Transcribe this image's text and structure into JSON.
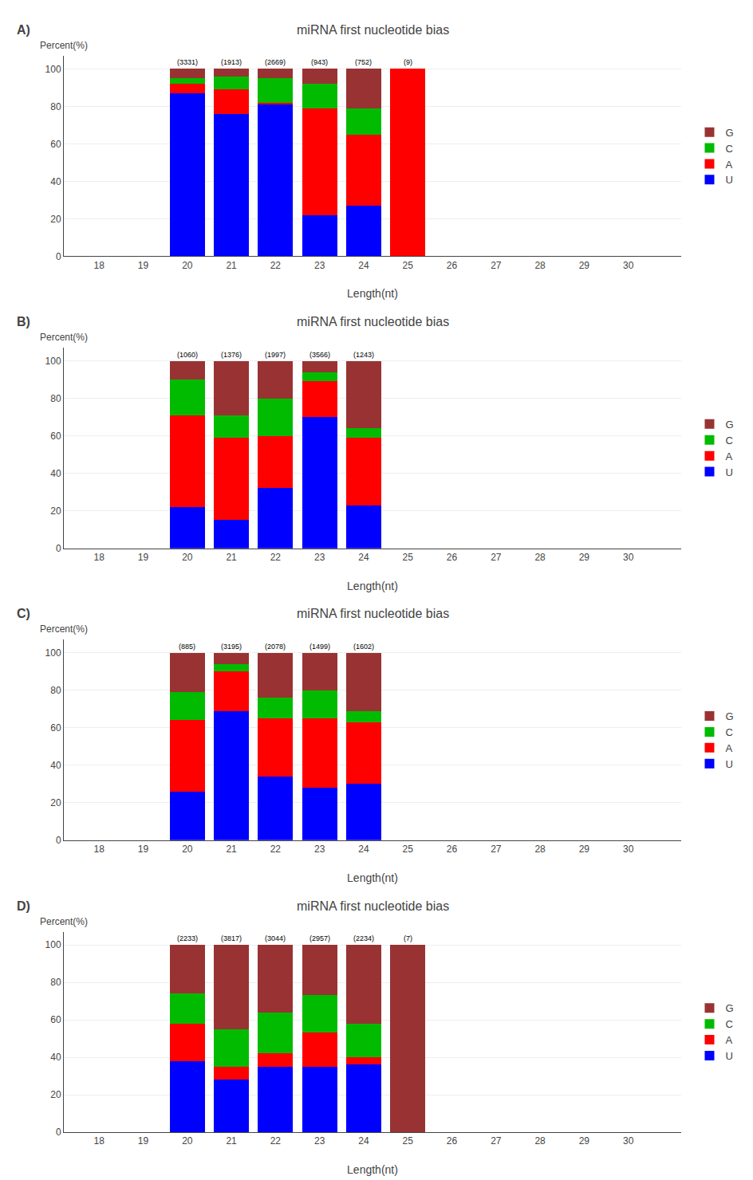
{
  "chart_data": [
    {
      "type": "bar",
      "title": "miRNA first nucleotide bias",
      "subtitle": "A)",
      "xlabel": "Length(nt)",
      "ylabel": "Percent(%)",
      "x": [
        20,
        21,
        22,
        23,
        24,
        25
      ],
      "series": [
        {
          "name": "U",
          "color": "#0000ff",
          "values": [
            87,
            76,
            81,
            22,
            27,
            0
          ]
        },
        {
          "name": "A",
          "color": "#ff0000",
          "values": [
            5,
            13,
            1,
            57,
            38,
            100
          ]
        },
        {
          "name": "C",
          "color": "#00bb00",
          "values": [
            3,
            7,
            13,
            13,
            14,
            0
          ]
        },
        {
          "name": "G",
          "color": "#993333",
          "values": [
            5,
            4,
            5,
            8,
            21,
            0
          ]
        }
      ],
      "annotations": [
        {
          "x": 20,
          "text": "(3331)"
        },
        {
          "x": 21,
          "text": "(1913)"
        },
        {
          "x": 22,
          "text": "(2669)"
        },
        {
          "x": 23,
          "text": "(943)"
        },
        {
          "x": 24,
          "text": "(752)"
        },
        {
          "x": 25,
          "text": "(9)"
        }
      ],
      "stacked": true,
      "xlim": [
        17.2,
        31.2
      ],
      "xticks": [
        18,
        19,
        20,
        21,
        22,
        23,
        24,
        25,
        26,
        27,
        28,
        29,
        30
      ],
      "ylim": [
        0,
        107
      ],
      "yticks": [
        0,
        20,
        40,
        60,
        80,
        100
      ],
      "grid": true,
      "legend": "right"
    },
    {
      "type": "bar",
      "title": "miRNA first nucleotide bias",
      "subtitle": "B)",
      "xlabel": "Length(nt)",
      "ylabel": "Percent(%)",
      "x": [
        20,
        21,
        22,
        23,
        24
      ],
      "series": [
        {
          "name": "U",
          "color": "#0000ff",
          "values": [
            22,
            15,
            32,
            70,
            23
          ]
        },
        {
          "name": "A",
          "color": "#ff0000",
          "values": [
            49,
            44,
            28,
            19,
            36
          ]
        },
        {
          "name": "C",
          "color": "#00bb00",
          "values": [
            19,
            12,
            20,
            5,
            5
          ]
        },
        {
          "name": "G",
          "color": "#993333",
          "values": [
            10,
            29,
            20,
            6,
            36
          ]
        }
      ],
      "annotations": [
        {
          "x": 20,
          "text": "(1060)"
        },
        {
          "x": 21,
          "text": "(1376)"
        },
        {
          "x": 22,
          "text": "(1997)"
        },
        {
          "x": 23,
          "text": "(3566)"
        },
        {
          "x": 24,
          "text": "(1243)"
        }
      ],
      "stacked": true,
      "xlim": [
        17.2,
        31.2
      ],
      "xticks": [
        18,
        19,
        20,
        21,
        22,
        23,
        24,
        25,
        26,
        27,
        28,
        29,
        30
      ],
      "ylim": [
        0,
        107
      ],
      "yticks": [
        0,
        20,
        40,
        60,
        80,
        100
      ],
      "grid": true,
      "legend": "right"
    },
    {
      "type": "bar",
      "title": "miRNA first nucleotide bias",
      "subtitle": "C)",
      "xlabel": "Length(nt)",
      "ylabel": "Percent(%)",
      "x": [
        20,
        21,
        22,
        23,
        24
      ],
      "series": [
        {
          "name": "U",
          "color": "#0000ff",
          "values": [
            26,
            69,
            34,
            28,
            30
          ]
        },
        {
          "name": "A",
          "color": "#ff0000",
          "values": [
            38,
            21,
            31,
            37,
            33
          ]
        },
        {
          "name": "C",
          "color": "#00bb00",
          "values": [
            15,
            4,
            11,
            15,
            6
          ]
        },
        {
          "name": "G",
          "color": "#993333",
          "values": [
            21,
            6,
            24,
            20,
            31
          ]
        }
      ],
      "annotations": [
        {
          "x": 20,
          "text": "(885)"
        },
        {
          "x": 21,
          "text": "(3195)"
        },
        {
          "x": 22,
          "text": "(2078)"
        },
        {
          "x": 23,
          "text": "(1499)"
        },
        {
          "x": 24,
          "text": "(1602)"
        }
      ],
      "stacked": true,
      "xlim": [
        17.2,
        31.2
      ],
      "xticks": [
        18,
        19,
        20,
        21,
        22,
        23,
        24,
        25,
        26,
        27,
        28,
        29,
        30
      ],
      "ylim": [
        0,
        107
      ],
      "yticks": [
        0,
        20,
        40,
        60,
        80,
        100
      ],
      "grid": true,
      "legend": "right"
    },
    {
      "type": "bar",
      "title": "miRNA first nucleotide bias",
      "subtitle": "D)",
      "xlabel": "Length(nt)",
      "ylabel": "Percent(%)",
      "x": [
        20,
        21,
        22,
        23,
        24,
        25
      ],
      "series": [
        {
          "name": "U",
          "color": "#0000ff",
          "values": [
            38,
            28,
            35,
            35,
            36,
            0
          ]
        },
        {
          "name": "A",
          "color": "#ff0000",
          "values": [
            20,
            7,
            7,
            18,
            4,
            0
          ]
        },
        {
          "name": "C",
          "color": "#00bb00",
          "values": [
            16,
            20,
            22,
            20,
            18,
            0
          ]
        },
        {
          "name": "G",
          "color": "#993333",
          "values": [
            26,
            45,
            36,
            27,
            42,
            100
          ]
        }
      ],
      "annotations": [
        {
          "x": 20,
          "text": "(2233)"
        },
        {
          "x": 21,
          "text": "(3817)"
        },
        {
          "x": 22,
          "text": "(3044)"
        },
        {
          "x": 23,
          "text": "(2957)"
        },
        {
          "x": 24,
          "text": "(2234)"
        },
        {
          "x": 25,
          "text": "(7)"
        }
      ],
      "stacked": true,
      "xlim": [
        17.2,
        31.2
      ],
      "xticks": [
        18,
        19,
        20,
        21,
        22,
        23,
        24,
        25,
        26,
        27,
        28,
        29,
        30
      ],
      "ylim": [
        0,
        107
      ],
      "yticks": [
        0,
        20,
        40,
        60,
        80,
        100
      ],
      "grid": true,
      "legend": "right"
    }
  ]
}
